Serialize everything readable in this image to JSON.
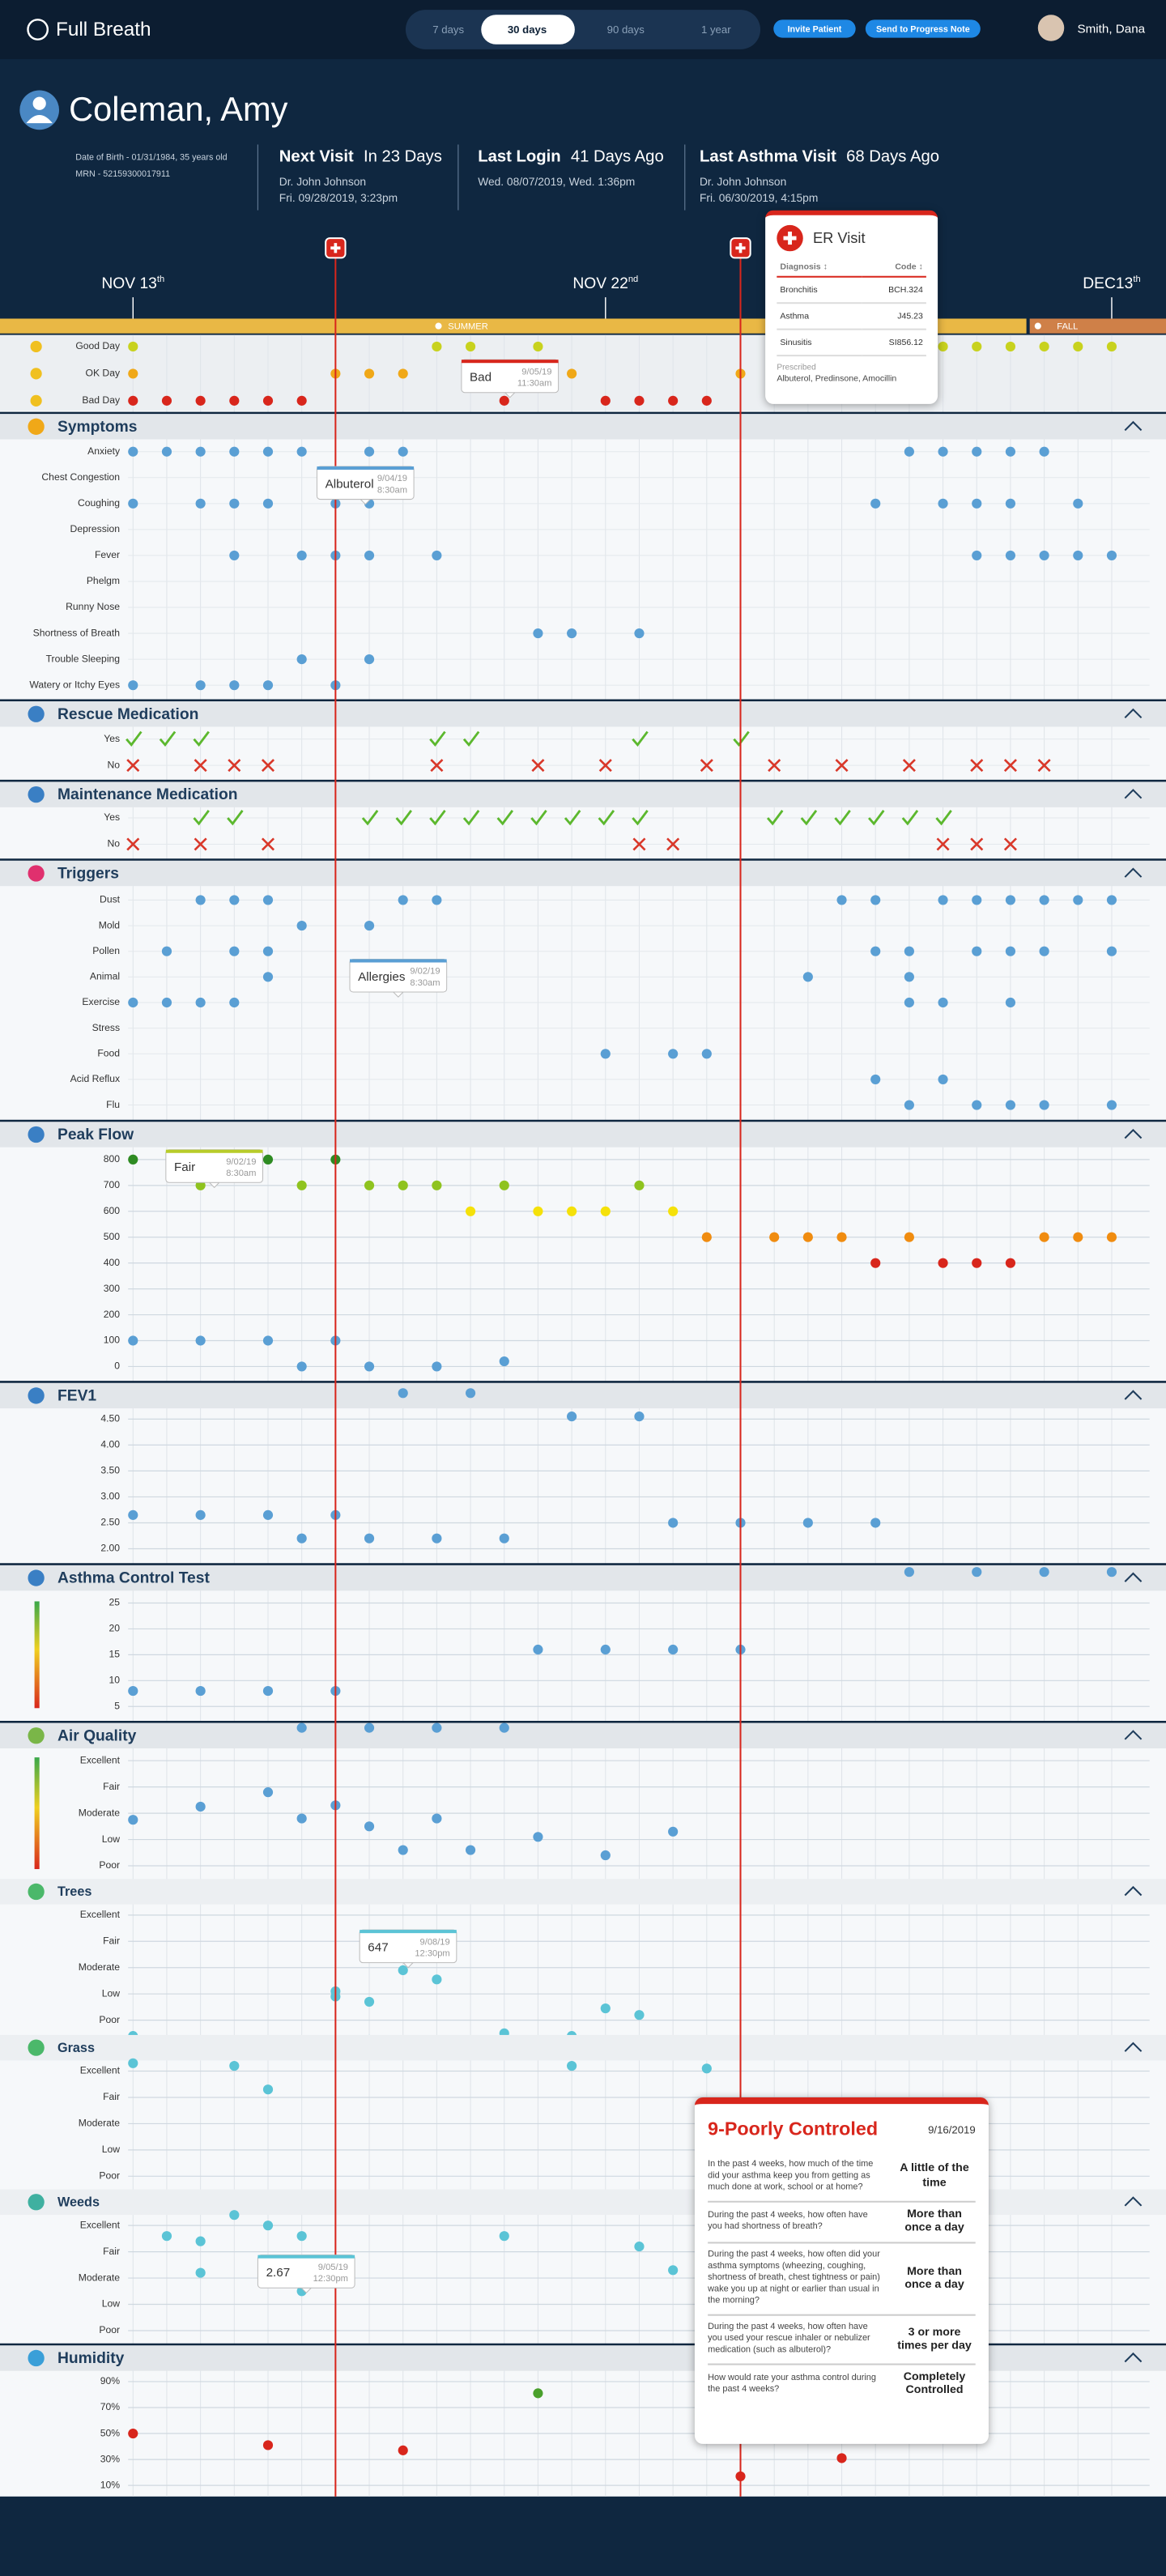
{
  "header": {
    "brand": "Full Breath",
    "ranges": [
      "7 days",
      "30 days",
      "90 days",
      "1 year"
    ],
    "active_range": 1,
    "actions": [
      "Invite Patient",
      "Send to Progress Note"
    ],
    "user": "Smith, Dana"
  },
  "patient": {
    "name": "Coleman, Amy",
    "dob": "Date of Birth - 01/31/1984, 35 years old",
    "mrn": "MRN - 52159300017911",
    "visits": [
      {
        "title": "Next Visit",
        "value": "In 23 Days",
        "lines": [
          "Dr. John Johnson",
          "Fri. 09/28/2019, 3:23pm"
        ]
      },
      {
        "title": "Last Login",
        "value": "41 Days Ago",
        "lines": [
          "Wed. 08/07/2019, Wed. 1:36pm"
        ]
      },
      {
        "title": "Last Asthma Visit",
        "value": "68 Days Ago",
        "lines": [
          "Dr. John Johnson",
          "Fri. 06/30/2019, 4:15pm"
        ]
      }
    ]
  },
  "timeline": {
    "dates": [
      {
        "label": "NOV 13",
        "suffix": "th",
        "col": 0
      },
      {
        "label": "NOV 22",
        "suffix": "nd",
        "col": 14
      },
      {
        "label": "DEC13",
        "suffix": "th",
        "col": 29
      }
    ],
    "seasons": [
      "SUMMER",
      "FALL"
    ],
    "er_visits": [
      6,
      18
    ]
  },
  "er_popup": {
    "title": "ER Visit",
    "columns": [
      "Diagnosis ↕",
      "Code ↕"
    ],
    "rows": [
      [
        "Bronchitis",
        "BCH.324"
      ],
      [
        "Asthma",
        "J45.23"
      ],
      [
        "Sinusitis",
        "SI856.12"
      ]
    ],
    "prescribed_label": "Prescribed",
    "prescribed": "Albuterol, Predinsone, Amocillin"
  },
  "mood": {
    "rows": [
      {
        "label": "Good Day",
        "color": "#c8d21e",
        "days": [
          0,
          9,
          10,
          12,
          24,
          25,
          26,
          27,
          28,
          29
        ]
      },
      {
        "label": "OK Day",
        "color": "#f0a818",
        "days": [
          0,
          6,
          7,
          8,
          13,
          18
        ]
      },
      {
        "label": "Bad Day",
        "color": "#d8261c",
        "days": [
          0,
          1,
          2,
          3,
          4,
          5,
          11,
          14,
          15,
          16,
          17
        ]
      }
    ]
  },
  "sections": [
    {
      "title": "Symptoms",
      "icon_color": "#f0a818",
      "color": "#5a9fd4",
      "rows": [
        {
          "label": "Anxiety",
          "days": [
            0,
            1,
            2,
            3,
            4,
            5,
            7,
            8,
            23,
            24,
            25,
            26,
            27
          ]
        },
        {
          "label": "Chest Congestion",
          "days": []
        },
        {
          "label": "Coughing",
          "days": [
            0,
            2,
            3,
            4,
            6,
            7,
            22,
            24,
            25,
            26,
            28
          ]
        },
        {
          "label": "Depression",
          "days": []
        },
        {
          "label": "Fever",
          "days": [
            3,
            5,
            6,
            7,
            9,
            25,
            26,
            27,
            28,
            29
          ]
        },
        {
          "label": "Phelgm",
          "days": []
        },
        {
          "label": "Runny Nose",
          "days": []
        },
        {
          "label": "Shortness of Breath",
          "days": [
            12,
            13,
            15
          ]
        },
        {
          "label": "Trouble Sleeping",
          "days": [
            5,
            7
          ]
        },
        {
          "label": "Watery or Itchy Eyes",
          "days": [
            0,
            2,
            3,
            4,
            6
          ]
        }
      ]
    },
    {
      "title": "Rescue Medication",
      "icon_color": "#3a7fc4",
      "rows": [
        {
          "label": "Yes",
          "mark": "check",
          "color": "#5cb82e",
          "days": [
            0,
            1,
            2,
            9,
            10,
            15,
            18
          ]
        },
        {
          "label": "No",
          "mark": "x",
          "color": "#d9382a",
          "days": [
            0,
            2,
            3,
            4,
            9,
            12,
            14,
            17,
            19,
            21,
            23,
            25,
            26,
            27
          ]
        }
      ]
    },
    {
      "title": "Maintenance Medication",
      "icon_color": "#3a7fc4",
      "rows": [
        {
          "label": "Yes",
          "mark": "check",
          "color": "#5cb82e",
          "days": [
            2,
            3,
            7,
            8,
            9,
            10,
            11,
            12,
            13,
            14,
            15,
            19,
            20,
            21,
            22,
            23,
            24
          ]
        },
        {
          "label": "No",
          "mark": "x",
          "color": "#d9382a",
          "days": [
            0,
            2,
            4,
            15,
            16,
            24,
            25,
            26
          ]
        }
      ]
    },
    {
      "title": "Triggers",
      "icon_color": "#e0306e",
      "color": "#5a9fd4",
      "rows": [
        {
          "label": "Dust",
          "days": [
            2,
            3,
            4,
            8,
            9,
            21,
            22,
            24,
            25,
            26,
            27,
            28,
            29
          ]
        },
        {
          "label": "Mold",
          "days": [
            5,
            7
          ]
        },
        {
          "label": "Pollen",
          "days": [
            1,
            3,
            4,
            22,
            23,
            25,
            26,
            27,
            29
          ]
        },
        {
          "label": "Animal",
          "days": [
            4,
            20,
            23
          ]
        },
        {
          "label": "Exercise",
          "days": [
            0,
            1,
            2,
            3,
            23,
            24,
            26
          ]
        },
        {
          "label": "Stress",
          "days": []
        },
        {
          "label": "Food",
          "days": [
            14,
            16,
            17
          ]
        },
        {
          "label": "Acid Reflux",
          "days": [
            22,
            24
          ]
        },
        {
          "label": "Flu",
          "days": [
            23,
            25,
            26,
            27,
            29
          ]
        }
      ]
    },
    {
      "title": "Peak Flow",
      "icon_color": "#3a7fc4",
      "chart": {
        "type": "scatter",
        "ylim": [
          0,
          800
        ],
        "yticks": [
          800,
          700,
          600,
          500,
          400,
          300,
          200,
          100,
          0
        ],
        "series": [
          {
            "color": "#2e8b22",
            "x": [
              0,
              4,
              6
            ],
            "values": [
              800,
              800,
              800
            ]
          },
          {
            "color": "#8fc31f",
            "x": [
              2,
              5,
              7,
              8,
              9,
              11,
              15
            ],
            "values": [
              700,
              700,
              700,
              700,
              700,
              700,
              700
            ]
          },
          {
            "color": "#f5e10a",
            "x": [
              10,
              12,
              13,
              14,
              16
            ],
            "values": [
              600,
              600,
              600,
              600,
              600
            ]
          },
          {
            "color": "#f08c10",
            "x": [
              17,
              19,
              20,
              21,
              23,
              27,
              28,
              29
            ],
            "values": [
              500,
              500,
              500,
              500,
              500,
              500,
              500,
              500
            ]
          },
          {
            "color": "#d8261c",
            "x": [
              22,
              24,
              25,
              26
            ],
            "values": [
              400,
              400,
              400,
              400
            ]
          },
          {
            "color": "#5a9fd4",
            "x": [
              0,
              2,
              4,
              5,
              6,
              7,
              9,
              11
            ],
            "values": [
              100,
              100,
              100,
              0,
              100,
              0,
              0,
              20
            ]
          }
        ]
      }
    },
    {
      "title": "FEV1",
      "icon_color": "#3a7fc4",
      "chart": {
        "type": "scatter",
        "ylim": [
          1.8,
          5.0
        ],
        "yticks": [
          {
            "value": 4.5,
            "label": "4.50"
          },
          {
            "value": 4,
            "label": "4.00"
          },
          {
            "value": 3.5,
            "label": "3.50"
          },
          {
            "value": 3,
            "label": "3.00"
          },
          {
            "value": 2.5,
            "label": "2.50"
          },
          {
            "value": 2,
            "label": "2.00"
          }
        ],
        "series": [
          {
            "color": "#5a9fd4",
            "x": [
              0,
              2,
              4,
              5,
              6,
              7,
              8,
              9,
              10,
              11,
              13,
              15,
              16,
              18,
              20,
              22
            ],
            "values": [
              2.65,
              2.65,
              2.65,
              2.2,
              2.65,
              2.2,
              5.0,
              2.2,
              5.0,
              2.2,
              4.55,
              4.55,
              2.5,
              2.5,
              2.5,
              2.5
            ]
          }
        ]
      }
    },
    {
      "title": "Asthma Control Test",
      "icon_color": "#3a7fc4",
      "chart": {
        "type": "scatter",
        "ylim": [
          3,
          31
        ],
        "yticks": [
          25,
          20,
          15,
          10,
          5
        ],
        "series": [
          {
            "color": "#5a9fd4",
            "x": [
              0,
              2,
              4,
              6,
              12,
              14,
              16,
              18,
              23,
              25,
              27,
              29
            ],
            "values": [
              8,
              8,
              8,
              8,
              16,
              16,
              16,
              16,
              31,
              31,
              31,
              31
            ]
          }
        ]
      }
    },
    {
      "title": "Air Quality",
      "icon_color": "#7ab648",
      "chart": {
        "type": "scatter",
        "ylim": [
          0.5,
          6.4
        ],
        "yticks": [
          {
            "value": 5,
            "label": "Excellent"
          },
          {
            "value": 4,
            "label": "Fair"
          },
          {
            "value": 3,
            "label": "Moderate"
          },
          {
            "value": 2,
            "label": "Low"
          },
          {
            "value": 1,
            "label": "Poor"
          }
        ],
        "series": [
          {
            "color": "#5a9fd4",
            "x": [
              0,
              2,
              4,
              5,
              6,
              7,
              8,
              9,
              10,
              12,
              14,
              16
            ],
            "values": [
              2.75,
              3.25,
              3.8,
              2.8,
              3.3,
              2.5,
              1.6,
              2.8,
              1.6,
              2.1,
              1.4,
              2.3
            ]
          },
          {
            "color": "#5a9fd4",
            "x": [
              5,
              7,
              9,
              11
            ],
            "values": [
              6.25,
              6.25,
              6.25,
              6.25
            ]
          }
        ]
      }
    },
    {
      "title": "Trees",
      "icon_color": "#4bb86a",
      "chart": {
        "type": "scatter",
        "ylim": [
          0.2,
          5.8
        ],
        "yticks": [
          {
            "value": 5,
            "label": "Excellent"
          },
          {
            "value": 4,
            "label": "Fair"
          },
          {
            "value": 3,
            "label": "Moderate"
          },
          {
            "value": 2,
            "label": "Low"
          },
          {
            "value": 1,
            "label": "Poor"
          }
        ],
        "series": [
          {
            "color": "#5bc4d6",
            "x": [
              6,
              7,
              8,
              9,
              14,
              15
            ],
            "values": [
              2.1,
              1.7,
              2.9,
              2.55,
              1.45,
              1.2
            ]
          },
          {
            "color": "#5bc4d6",
            "x": [
              0,
              6,
              7,
              11,
              13
            ],
            "values": [
              0.4,
              1.9,
              0.25,
              0.5,
              0.4
            ]
          }
        ]
      }
    },
    {
      "title": "Grass",
      "icon_color": "#4bb86a",
      "chart": {
        "type": "scatter",
        "ylim": [
          0.6,
          5.6
        ],
        "yticks": [
          {
            "value": 5,
            "label": "Excellent"
          },
          {
            "value": 4,
            "label": "Fair"
          },
          {
            "value": 3,
            "label": "Moderate"
          },
          {
            "value": 2,
            "label": "Low"
          },
          {
            "value": 1,
            "label": "Poor"
          }
        ],
        "series": [
          {
            "color": "#5bc4d6",
            "x": [
              0,
              3,
              4,
              13,
              17
            ],
            "values": [
              5.3,
              5.2,
              4.3,
              5.2,
              5.1
            ]
          }
        ]
      }
    },
    {
      "title": "Weeds",
      "icon_color": "#3fb0a0",
      "chart": {
        "type": "scatter",
        "ylim": [
          0.6,
          5.6
        ],
        "yticks": [
          {
            "value": 5,
            "label": "Excellent"
          },
          {
            "value": 4,
            "label": "Fair"
          },
          {
            "value": 3,
            "label": "Moderate"
          },
          {
            "value": 2,
            "label": "Low"
          },
          {
            "value": 1,
            "label": "Poor"
          }
        ],
        "series": [
          {
            "color": "#5bc4d6",
            "x": [
              1,
              2,
              3,
              4,
              5,
              11,
              15,
              16
            ],
            "values": [
              4.6,
              4.4,
              5.4,
              5.0,
              4.6,
              4.6,
              4.2,
              3.3
            ]
          },
          {
            "color": "#5bc4d6",
            "x": [
              2,
              5
            ],
            "values": [
              3.2,
              2.5
            ]
          }
        ]
      }
    },
    {
      "title": "Humidity",
      "icon_color": "#3a9fd8",
      "chart": {
        "type": "scatter",
        "ylim": [
          5,
          95
        ],
        "yticks": [
          {
            "value": 90,
            "label": "90%"
          },
          {
            "value": 70,
            "label": "70%"
          },
          {
            "value": 50,
            "label": "50%"
          },
          {
            "value": 30,
            "label": "30%"
          },
          {
            "value": 10,
            "label": "10%"
          }
        ],
        "series": [
          {
            "color": "#d8261c",
            "x": [
              0,
              4,
              8,
              18,
              21
            ],
            "values": [
              50,
              41,
              37,
              17,
              31
            ]
          },
          {
            "color": "#4aa02c",
            "x": [
              12
            ],
            "values": [
              81
            ]
          }
        ]
      }
    }
  ],
  "tooltips": [
    {
      "label": "Bad",
      "date": "9/05/19",
      "time": "11:30am"
    },
    {
      "label": "Albuterol",
      "date": "9/04/19",
      "time": "8:30am"
    },
    {
      "label": "Allergies",
      "date": "9/02/19",
      "time": "8:30am"
    },
    {
      "label": "Fair",
      "date": "9/02/19",
      "time": "8:30am"
    },
    {
      "label": "647",
      "date": "9/08/19",
      "time": "12:30pm"
    },
    {
      "label": "2.67",
      "date": "9/05/19",
      "time": "12:30pm"
    }
  ],
  "act_popup": {
    "title": "9-Poorly Controled",
    "date": "9/16/2019",
    "items": [
      {
        "q": "In the past 4 weeks, how much of the time did your asthma keep you from getting as much done at work, school or at home?",
        "a": "A little of the time"
      },
      {
        "q": "During the past 4 weeks, how often have you had shortness of breath?",
        "a": "More than once a day"
      },
      {
        "q": "During the past 4 weeks, how often did your asthma symptoms (wheezing, coughing, shortness of breath, chest tightness or pain) wake you up at night or earlier than usual in the morning?",
        "a": "More than once a day"
      },
      {
        "q": "During the past 4 weeks, how often have you used your rescue inhaler or nebulizer medication (such as albuterol)?",
        "a": "3 or more times per day"
      },
      {
        "q": "How would rate your asthma control during the past 4 weeks?",
        "a": "Completely Controlled"
      }
    ]
  }
}
